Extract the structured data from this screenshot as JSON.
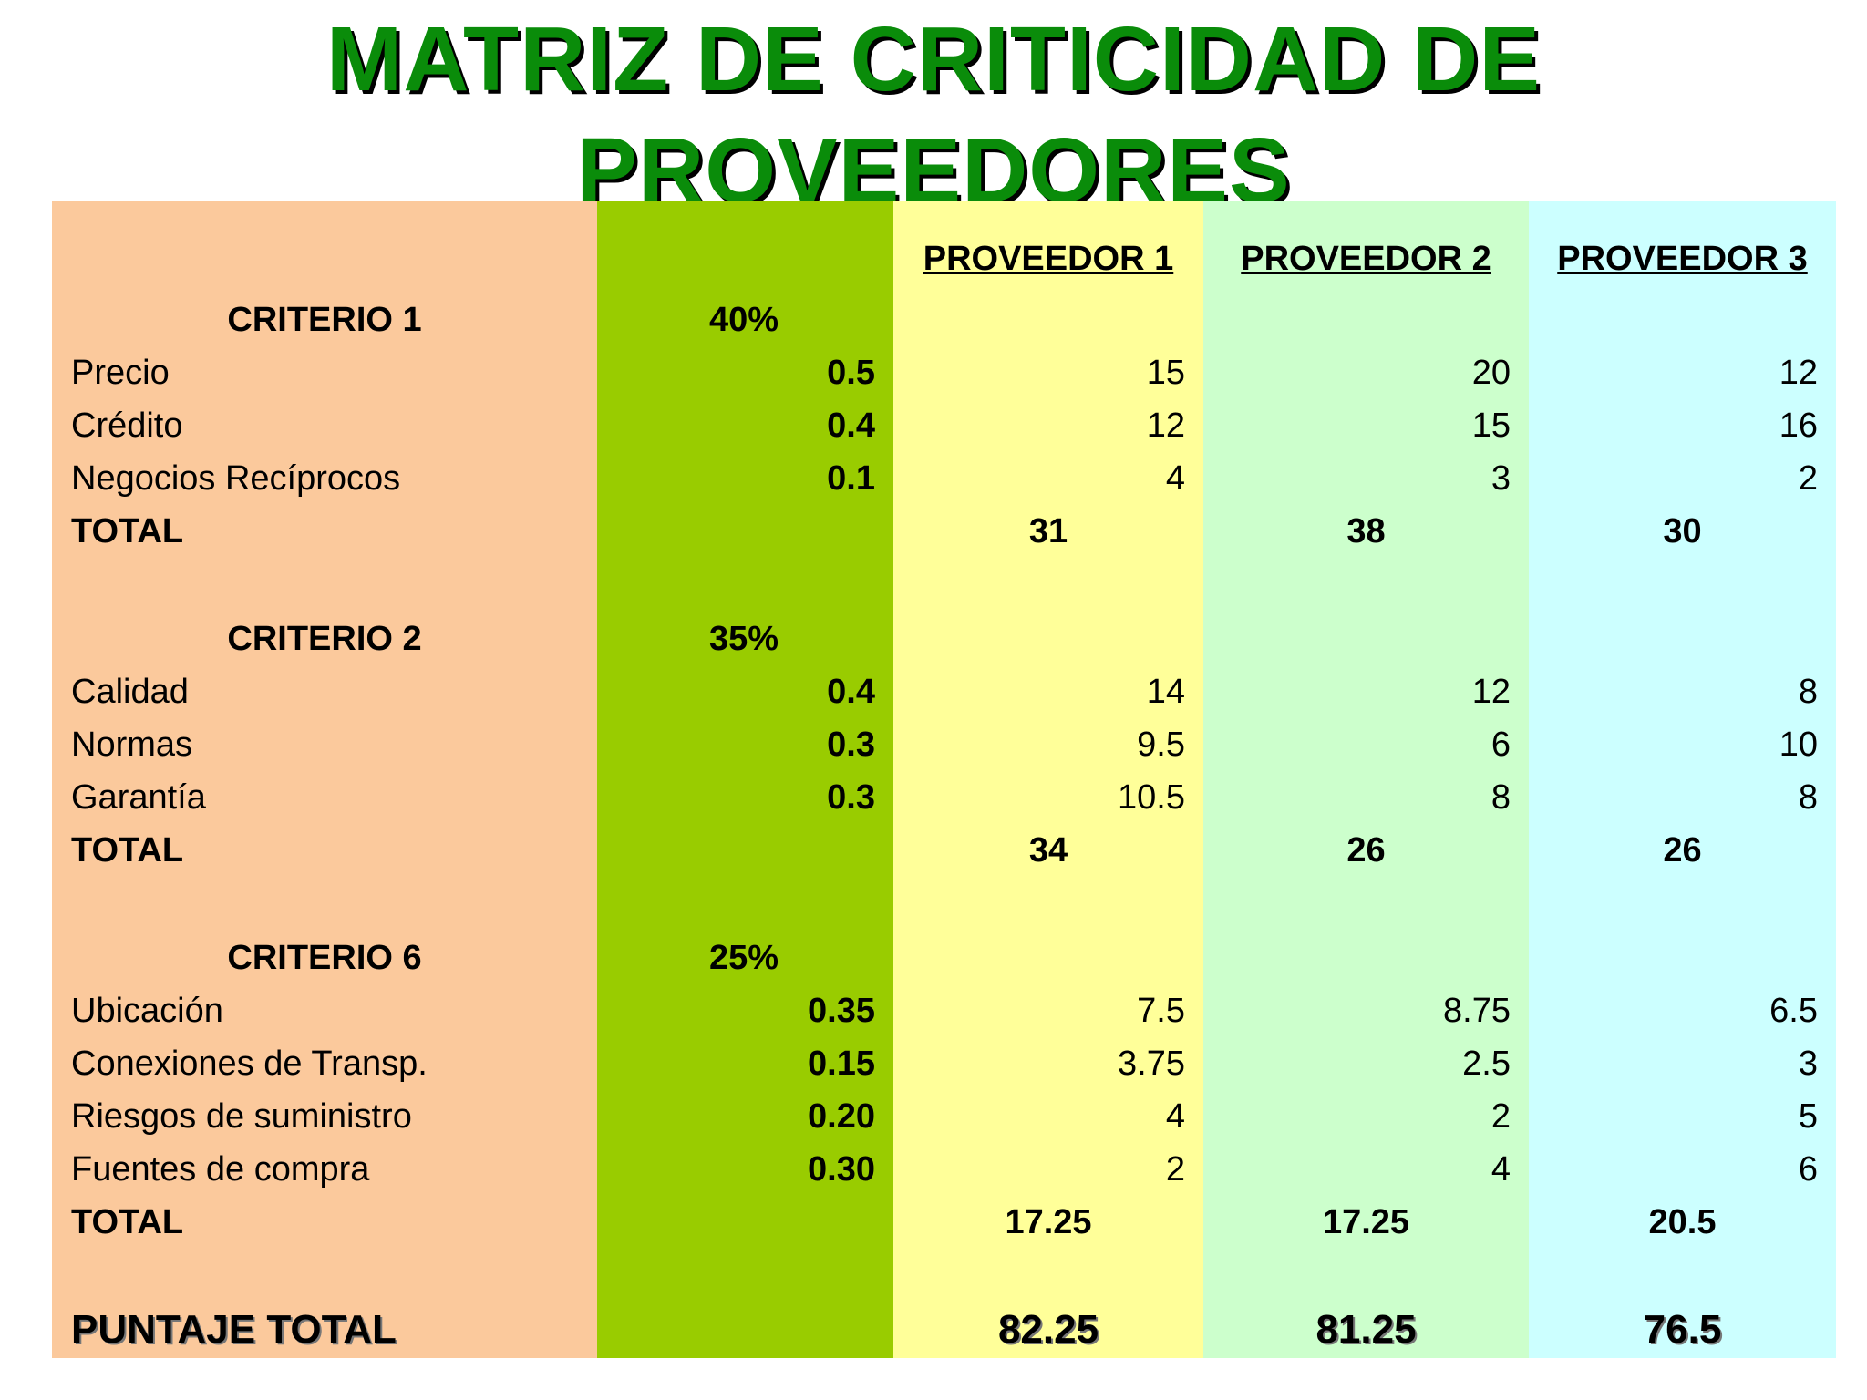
{
  "title_line1": "MATRIZ DE CRITICIDAD DE",
  "title_line2": "PROVEEDORES",
  "colors": {
    "title": "#0a8c0a",
    "criteria_band": "#fbc99c",
    "weight_band": "#99cc00",
    "proveedor1_band": "#ffff99",
    "proveedor2_band": "#ccffcc",
    "proveedor3_band": "#ccffff"
  },
  "headers": [
    "PROVEEDOR 1",
    "PROVEEDOR 2",
    "PROVEEDOR 3"
  ],
  "criteria": [
    {
      "name": "CRITERIO 1",
      "percent": "40%",
      "items": [
        {
          "label": "Precio",
          "weight": "0.5",
          "values": [
            "15",
            "20",
            "12"
          ]
        },
        {
          "label": "Crédito",
          "weight": "0.4",
          "values": [
            "12",
            "15",
            "16"
          ]
        },
        {
          "label": "Negocios Recíprocos",
          "weight": "0.1",
          "values": [
            "4",
            "3",
            "2"
          ]
        }
      ],
      "total_label": "TOTAL",
      "totals": [
        "31",
        "38",
        "30"
      ]
    },
    {
      "name": "CRITERIO 2",
      "percent": "35%",
      "items": [
        {
          "label": "Calidad",
          "weight": "0.4",
          "values": [
            "14",
            "12",
            "8"
          ]
        },
        {
          "label": "Normas",
          "weight": "0.3",
          "values": [
            "9.5",
            "6",
            "10"
          ]
        },
        {
          "label": "Garantía",
          "weight": "0.3",
          "values": [
            "10.5",
            "8",
            "8"
          ]
        }
      ],
      "total_label": "TOTAL",
      "totals": [
        "34",
        "26",
        "26"
      ]
    },
    {
      "name": "CRITERIO 6",
      "percent": "25%",
      "items": [
        {
          "label": "Ubicación",
          "weight": "0.35",
          "values": [
            "7.5",
            "8.75",
            "6.5"
          ]
        },
        {
          "label": "Conexiones de Transp.",
          "weight": "0.15",
          "values": [
            "3.75",
            "2.5",
            "3"
          ]
        },
        {
          "label": "Riesgos de suministro",
          "weight": "0.20",
          "values": [
            "4",
            "2",
            "5"
          ]
        },
        {
          "label": "Fuentes de compra",
          "weight": "0.30",
          "values": [
            "2",
            "4",
            "6"
          ]
        }
      ],
      "total_label": "TOTAL",
      "totals": [
        "17.25",
        "17.25",
        "20.5"
      ]
    }
  ],
  "grand_total_label": "PUNTAJE TOTAL",
  "grand_totals": [
    "82.25",
    "81.25",
    "76.5"
  ]
}
